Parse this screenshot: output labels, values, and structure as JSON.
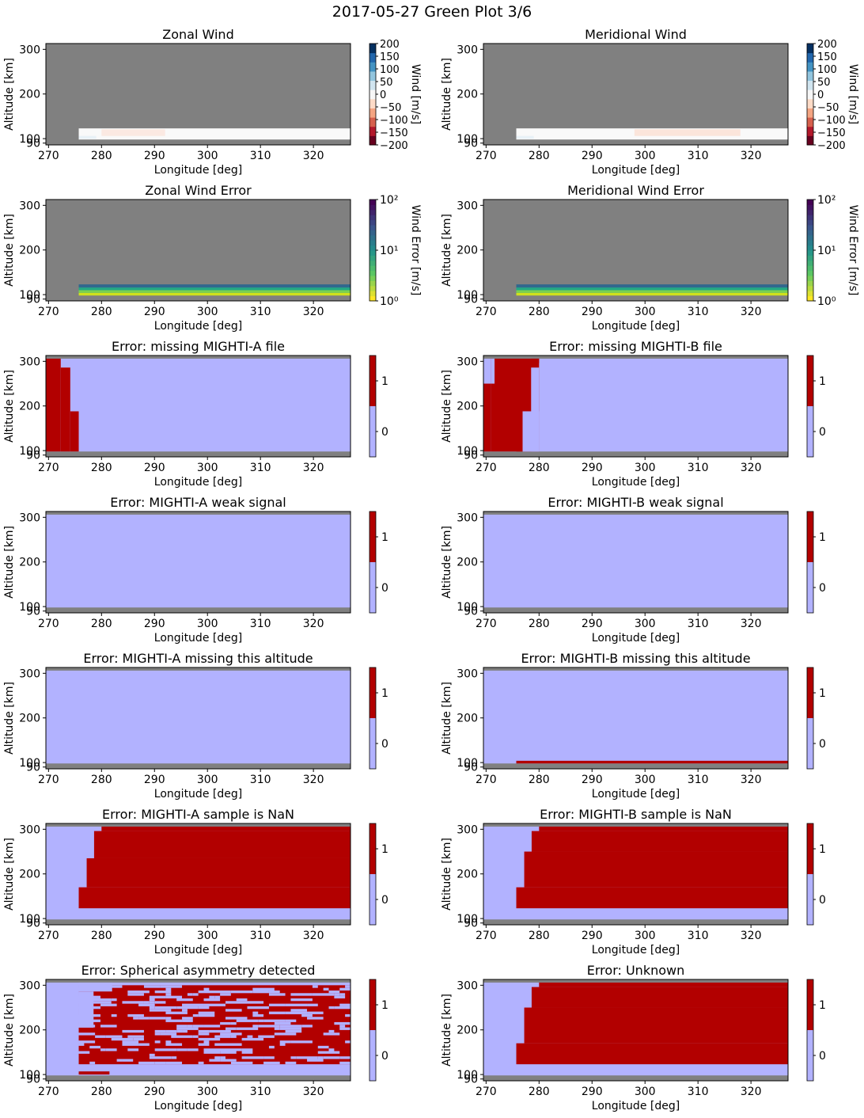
{
  "suptitle": "2017-05-27 Green Plot 3/6",
  "colors": {
    "missing": "#808080",
    "flag_zero": "#b2b2ff",
    "flag_one": "#b20000",
    "wind_cmap": [
      "#67001f",
      "#b2182b",
      "#d6604d",
      "#f4a582",
      "#fddbc7",
      "#f7f7f7",
      "#d1e5f0",
      "#92c5de",
      "#4393c3",
      "#2166ac",
      "#053061"
    ],
    "error_cmap": [
      "#fde725",
      "#5ec962",
      "#21918c",
      "#3b528b",
      "#440154"
    ]
  },
  "chart_data": [
    {
      "id": "zonal-wind",
      "type": "heatmap",
      "title": "Zonal Wind",
      "xlabel": "Longitude [deg]",
      "ylabel": "Altitude [km]",
      "xticks": [
        270,
        280,
        290,
        300,
        310,
        320
      ],
      "yticks": [
        90,
        100,
        200,
        300
      ],
      "xlim": [
        269.5,
        327
      ],
      "ylim": [
        86,
        313
      ],
      "colorbar": {
        "kind": "diverging",
        "label": "Wind [m/s]",
        "ticks": [
          "200",
          "150",
          "100",
          "50",
          "0",
          "−50",
          "−100",
          "−150",
          "−200"
        ],
        "range": [
          -200,
          200
        ]
      },
      "data_extent": {
        "lon": [
          275.7,
          327
        ],
        "alt": [
          98,
          123
        ]
      },
      "note_values": "near 0 m/s (white band)"
    },
    {
      "id": "meridional-wind",
      "type": "heatmap",
      "title": "Meridional Wind",
      "xlabel": "Longitude [deg]",
      "ylabel": "Altitude [km]",
      "xticks": [
        270,
        280,
        290,
        300,
        310,
        320
      ],
      "yticks": [
        90,
        100,
        200,
        300
      ],
      "xlim": [
        269.5,
        327
      ],
      "ylim": [
        86,
        313
      ],
      "colorbar": {
        "kind": "diverging",
        "label": "Wind [m/s]",
        "ticks": [
          "200",
          "150",
          "100",
          "50",
          "0",
          "−50",
          "−100",
          "−150",
          "−200"
        ],
        "range": [
          -200,
          200
        ]
      },
      "data_extent": {
        "lon": [
          275.7,
          327
        ],
        "alt": [
          98,
          123
        ]
      }
    },
    {
      "id": "zonal-wind-error",
      "type": "heatmap",
      "title": "Zonal Wind Error",
      "xlabel": "Longitude [deg]",
      "ylabel": "Altitude [km]",
      "xticks": [
        270,
        280,
        290,
        300,
        310,
        320
      ],
      "yticks": [
        90,
        100,
        200,
        300
      ],
      "xlim": [
        269.5,
        327
      ],
      "ylim": [
        86,
        313
      ],
      "colorbar": {
        "kind": "log",
        "label": "Wind Error [m/s]",
        "ticks": [
          "10²",
          "10¹",
          "10⁰"
        ],
        "range": [
          1,
          100
        ]
      },
      "error_bands": [
        {
          "alt": [
            98,
            104
          ],
          "value": 1.5
        },
        {
          "alt": [
            104,
            110
          ],
          "value": 3
        },
        {
          "alt": [
            110,
            116
          ],
          "value": 10
        },
        {
          "alt": [
            116,
            123
          ],
          "value": 25
        }
      ],
      "data_extent": {
        "lon": [
          275.7,
          327
        ]
      }
    },
    {
      "id": "meridional-wind-error",
      "type": "heatmap",
      "title": "Meridional Wind Error",
      "xlabel": "Longitude [deg]",
      "ylabel": "Altitude [km]",
      "xticks": [
        270,
        280,
        290,
        300,
        310,
        320
      ],
      "yticks": [
        90,
        100,
        200,
        300
      ],
      "xlim": [
        269.5,
        327
      ],
      "ylim": [
        86,
        313
      ],
      "colorbar": {
        "kind": "log",
        "label": "Wind Error [m/s]",
        "ticks": [
          "10²",
          "10¹",
          "10⁰"
        ],
        "range": [
          1,
          100
        ]
      },
      "error_bands": [
        {
          "alt": [
            98,
            104
          ],
          "value": 1.5
        },
        {
          "alt": [
            104,
            110
          ],
          "value": 3
        },
        {
          "alt": [
            110,
            116
          ],
          "value": 10
        },
        {
          "alt": [
            116,
            123
          ],
          "value": 25
        }
      ],
      "data_extent": {
        "lon": [
          275.7,
          327
        ]
      }
    },
    {
      "id": "missing-mighti-a-file",
      "type": "heatmap",
      "title": "Error: missing MIGHTI-A file",
      "xlabel": "Longitude [deg]",
      "ylabel": "Altitude [km]",
      "xticks": [
        270,
        280,
        290,
        300,
        310,
        320
      ],
      "yticks": [
        90,
        100,
        200,
        300
      ],
      "xlim": [
        269.5,
        327
      ],
      "ylim": [
        86,
        313
      ],
      "colorbar": {
        "kind": "binary",
        "ticks": [
          "1",
          "0"
        ]
      },
      "flag_region": {
        "lon": [
          269.5,
          327
        ],
        "alt": [
          98,
          306
        ]
      },
      "flag_one_boxes": [
        {
          "lon": [
            269.5,
            272.3
          ],
          "alt": [
            98,
            306
          ]
        },
        {
          "lon": [
            272.3,
            274.1
          ],
          "alt": [
            98,
            286
          ]
        },
        {
          "lon": [
            274.1,
            275.7
          ],
          "alt": [
            98,
            188
          ]
        }
      ]
    },
    {
      "id": "missing-mighti-b-file",
      "type": "heatmap",
      "title": "Error: missing MIGHTI-B file",
      "xlabel": "Longitude [deg]",
      "ylabel": "Altitude [km]",
      "xticks": [
        270,
        280,
        290,
        300,
        310,
        320
      ],
      "yticks": [
        90,
        100,
        200,
        300
      ],
      "xlim": [
        269.5,
        327
      ],
      "ylim": [
        86,
        313
      ],
      "colorbar": {
        "kind": "binary",
        "ticks": [
          "1",
          "0"
        ]
      },
      "flag_region": {
        "lon": [
          269.5,
          327
        ],
        "alt": [
          98,
          306
        ]
      },
      "flag_one_boxes": [
        {
          "lon": [
            269.5,
            270.9
          ],
          "alt": [
            98,
            250
          ]
        },
        {
          "lon": [
            270.9,
            280.0
          ],
          "alt": [
            98,
            306
          ]
        },
        {
          "lon": [
            278.5,
            280.0
          ],
          "alt": [
            296,
            306
          ]
        },
        {
          "lon": [
            276.9,
            278.5
          ],
          "alt": [
            98,
            286
          ]
        },
        {
          "lon": [
            275.7,
            276.9
          ],
          "alt": [
            98,
            165
          ]
        }
      ],
      "flag_zero_boxes": [
        {
          "lon": [
            270.9,
            271.6
          ],
          "alt": [
            250,
            306
          ]
        },
        {
          "lon": [
            278.5,
            280.0
          ],
          "alt": [
            98,
            286
          ]
        },
        {
          "lon": [
            276.9,
            278.5
          ],
          "alt": [
            98,
            188
          ]
        },
        {
          "lon": [
            276.9,
            280.0
          ],
          "alt": [
            98,
            188
          ]
        }
      ]
    },
    {
      "id": "mighti-a-weak-signal",
      "type": "heatmap",
      "title": "Error: MIGHTI-A weak signal",
      "xlabel": "Longitude [deg]",
      "ylabel": "Altitude [km]",
      "xticks": [
        270,
        280,
        290,
        300,
        310,
        320
      ],
      "yticks": [
        90,
        100,
        200,
        300
      ],
      "xlim": [
        269.5,
        327
      ],
      "ylim": [
        86,
        313
      ],
      "colorbar": {
        "kind": "binary",
        "ticks": [
          "1",
          "0"
        ]
      },
      "flag_region": {
        "lon": [
          269.5,
          327
        ],
        "alt": [
          98,
          306
        ]
      },
      "flag_one_boxes": []
    },
    {
      "id": "mighti-b-weak-signal",
      "type": "heatmap",
      "title": "Error: MIGHTI-B weak signal",
      "xlabel": "Longitude [deg]",
      "ylabel": "Altitude [km]",
      "xticks": [
        270,
        280,
        290,
        300,
        310,
        320
      ],
      "yticks": [
        90,
        100,
        200,
        300
      ],
      "xlim": [
        269.5,
        327
      ],
      "ylim": [
        86,
        313
      ],
      "colorbar": {
        "kind": "binary",
        "ticks": [
          "1",
          "0"
        ]
      },
      "flag_region": {
        "lon": [
          269.5,
          327
        ],
        "alt": [
          98,
          306
        ]
      },
      "flag_one_boxes": []
    },
    {
      "id": "mighti-a-missing-altitude",
      "type": "heatmap",
      "title": "Error: MIGHTI-A missing this altitude",
      "xlabel": "Longitude [deg]",
      "ylabel": "Altitude [km]",
      "xticks": [
        270,
        280,
        290,
        300,
        310,
        320
      ],
      "yticks": [
        90,
        100,
        200,
        300
      ],
      "xlim": [
        269.5,
        327
      ],
      "ylim": [
        86,
        313
      ],
      "colorbar": {
        "kind": "binary",
        "ticks": [
          "1",
          "0"
        ]
      },
      "flag_region": {
        "lon": [
          269.5,
          327
        ],
        "alt": [
          98,
          306
        ]
      },
      "flag_one_boxes": []
    },
    {
      "id": "mighti-b-missing-altitude",
      "type": "heatmap",
      "title": "Error: MIGHTI-B missing this altitude",
      "xlabel": "Longitude [deg]",
      "ylabel": "Altitude [km]",
      "xticks": [
        270,
        280,
        290,
        300,
        310,
        320
      ],
      "yticks": [
        90,
        100,
        200,
        300
      ],
      "xlim": [
        269.5,
        327
      ],
      "ylim": [
        86,
        313
      ],
      "colorbar": {
        "kind": "binary",
        "ticks": [
          "1",
          "0"
        ]
      },
      "flag_region": {
        "lon": [
          269.5,
          327
        ],
        "alt": [
          98,
          306
        ]
      },
      "flag_one_boxes": [
        {
          "lon": [
            275.7,
            327
          ],
          "alt": [
            98,
            104
          ]
        }
      ]
    },
    {
      "id": "mighti-a-sample-nan",
      "type": "heatmap",
      "title": "Error: MIGHTI-A sample is NaN",
      "xlabel": "Longitude [deg]",
      "ylabel": "Altitude [km]",
      "xticks": [
        270,
        280,
        290,
        300,
        310,
        320
      ],
      "yticks": [
        90,
        100,
        200,
        300
      ],
      "xlim": [
        269.5,
        327
      ],
      "ylim": [
        86,
        313
      ],
      "colorbar": {
        "kind": "binary",
        "ticks": [
          "1",
          "0"
        ]
      },
      "flag_region": {
        "lon": [
          269.5,
          327
        ],
        "alt": [
          98,
          306
        ]
      },
      "flag_one_boxes": [
        {
          "lon": [
            275.7,
            327
          ],
          "alt": [
            123,
            170
          ]
        },
        {
          "lon": [
            277.2,
            327
          ],
          "alt": [
            170,
            235
          ]
        },
        {
          "lon": [
            278.6,
            327
          ],
          "alt": [
            235,
            296
          ]
        },
        {
          "lon": [
            280.0,
            327
          ],
          "alt": [
            296,
            306
          ]
        }
      ]
    },
    {
      "id": "mighti-b-sample-nan",
      "type": "heatmap",
      "title": "Error: MIGHTI-B sample is NaN",
      "xlabel": "Longitude [deg]",
      "ylabel": "Altitude [km]",
      "xticks": [
        270,
        280,
        290,
        300,
        310,
        320
      ],
      "yticks": [
        90,
        100,
        200,
        300
      ],
      "xlim": [
        269.5,
        327
      ],
      "ylim": [
        86,
        313
      ],
      "colorbar": {
        "kind": "binary",
        "ticks": [
          "1",
          "0"
        ]
      },
      "flag_region": {
        "lon": [
          269.5,
          327
        ],
        "alt": [
          98,
          306
        ]
      },
      "flag_one_boxes": [
        {
          "lon": [
            275.7,
            327
          ],
          "alt": [
            123,
            170
          ]
        },
        {
          "lon": [
            277.2,
            327
          ],
          "alt": [
            170,
            250
          ]
        },
        {
          "lon": [
            278.6,
            327
          ],
          "alt": [
            250,
            296
          ]
        },
        {
          "lon": [
            280.0,
            327
          ],
          "alt": [
            296,
            306
          ]
        }
      ]
    },
    {
      "id": "spherical-asymmetry",
      "type": "heatmap",
      "title": "Error: Spherical asymmetry detected",
      "xlabel": "Longitude [deg]",
      "ylabel": "Altitude [km]",
      "xticks": [
        270,
        280,
        290,
        300,
        310,
        320
      ],
      "yticks": [
        90,
        100,
        200,
        300
      ],
      "xlim": [
        269.5,
        327
      ],
      "ylim": [
        86,
        313
      ],
      "colorbar": {
        "kind": "binary",
        "ticks": [
          "1",
          "0"
        ]
      },
      "flag_region": {
        "lon": [
          269.5,
          327
        ],
        "alt": [
          98,
          306
        ]
      },
      "flag_one_boxes": [
        {
          "lon": [
            275.7,
            281.5
          ],
          "alt": [
            100,
            107
          ]
        },
        {
          "lon": [
            275.7,
            327
          ],
          "alt": [
            123,
            300
          ]
        }
      ],
      "scatter_zero_band": {
        "lon": [
          275.7,
          327
        ],
        "alt": [
          123,
          300
        ],
        "fraction_zero": 0.3
      }
    },
    {
      "id": "unknown",
      "type": "heatmap",
      "title": "Error: Unknown",
      "xlabel": "Longitude [deg]",
      "ylabel": "Altitude [km]",
      "xticks": [
        270,
        280,
        290,
        300,
        310,
        320
      ],
      "yticks": [
        90,
        100,
        200,
        300
      ],
      "xlim": [
        269.5,
        327
      ],
      "ylim": [
        86,
        313
      ],
      "colorbar": {
        "kind": "binary",
        "ticks": [
          "1",
          "0"
        ]
      },
      "flag_region": {
        "lon": [
          269.5,
          327
        ],
        "alt": [
          98,
          306
        ]
      },
      "flag_one_boxes": [
        {
          "lon": [
            275.7,
            327
          ],
          "alt": [
            123,
            170
          ]
        },
        {
          "lon": [
            277.2,
            327
          ],
          "alt": [
            170,
            250
          ]
        },
        {
          "lon": [
            278.6,
            327
          ],
          "alt": [
            250,
            296
          ]
        },
        {
          "lon": [
            280.0,
            327
          ],
          "alt": [
            296,
            306
          ]
        }
      ]
    }
  ]
}
